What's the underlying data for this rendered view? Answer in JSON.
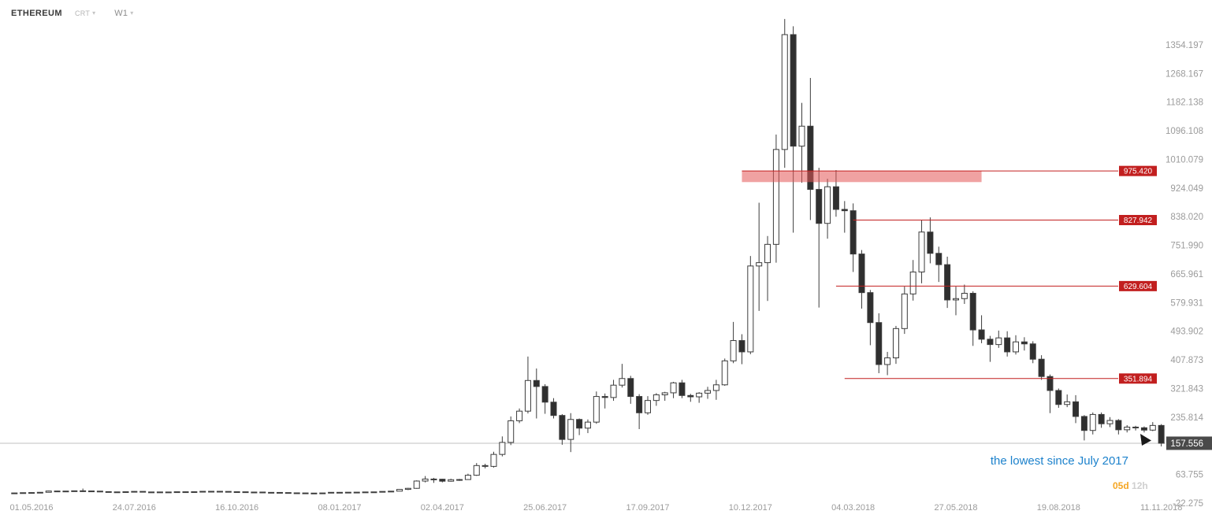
{
  "header": {
    "symbol": "ETHEREUM",
    "chart_type": "CRT",
    "timeframe": "W1"
  },
  "annotation": {
    "text": "the lowest since July 2017"
  },
  "countdown": {
    "days": "05d",
    "hours": "12h"
  },
  "current_price": {
    "label": "157.556",
    "value": 157.556
  },
  "colors": {
    "up_candle": "#ffffff",
    "down_candle": "#2f2f2f",
    "candle_outline": "#3c3c3c",
    "level_red": "#c21f1f",
    "zone_fill": "#e35555",
    "current_price_line": "#c0c0c0",
    "current_price_tag_bg": "#4a4a4a",
    "axis_text": "#9b9b9b",
    "annotation_blue": "#1d82cc",
    "countdown_orange": "#f5a623"
  },
  "levels": [
    {
      "label": "975.420",
      "price": 975.42,
      "type": "zone",
      "zone_bottom": 942.0,
      "start_index": 85,
      "zone_end_index": 113
    },
    {
      "label": "827.942",
      "price": 827.942,
      "type": "line",
      "start_index": 98
    },
    {
      "label": "629.604",
      "price": 629.604,
      "type": "line",
      "start_index": 96
    },
    {
      "label": "351.894",
      "price": 351.894,
      "type": "line",
      "start_index": 97
    }
  ],
  "price_axis": {
    "labels": [
      "1354.197",
      "1268.167",
      "1182.138",
      "1096.108",
      "1010.079",
      "924.049",
      "838.020",
      "751.990",
      "665.961",
      "579.931",
      "493.902",
      "407.873",
      "321.843",
      "235.814",
      "63.755",
      "-22.275"
    ]
  },
  "time_axis": {
    "ticks": [
      {
        "label": "01.05.2016",
        "index": 2
      },
      {
        "label": "24.07.2016",
        "index": 14
      },
      {
        "label": "16.10.2016",
        "index": 26
      },
      {
        "label": "08.01.2017",
        "index": 38
      },
      {
        "label": "02.04.2017",
        "index": 50
      },
      {
        "label": "25.06.2017",
        "index": 62
      },
      {
        "label": "17.09.2017",
        "index": 74
      },
      {
        "label": "10.12.2017",
        "index": 86
      },
      {
        "label": "04.03.2018",
        "index": 98
      },
      {
        "label": "27.05.2018",
        "index": 110
      },
      {
        "label": "19.08.2018",
        "index": 122
      },
      {
        "label": "11.11.2018",
        "index": 134
      }
    ]
  },
  "chart_data": {
    "type": "candlestick",
    "symbol": "ETHEREUM",
    "timeframe": "W1",
    "ylim": [
      -22.275,
      1440
    ],
    "y_tick_step": 86.03,
    "x_range": [
      "2016-04-17",
      "2018-11-11"
    ],
    "grid": false,
    "legend": false,
    "candles": [
      [
        "2016-04-17",
        7.9,
        8.6,
        7.3,
        8.2
      ],
      [
        "2016-04-24",
        8.2,
        9.3,
        7.9,
        9.0
      ],
      [
        "2016-05-01",
        9.0,
        10.1,
        8.7,
        9.4
      ],
      [
        "2016-05-08",
        9.4,
        10.6,
        9.1,
        10.2
      ],
      [
        "2016-05-15",
        10.2,
        15.0,
        10.0,
        14.0
      ],
      [
        "2016-05-22",
        14.0,
        14.6,
        11.9,
        12.4
      ],
      [
        "2016-05-29",
        12.4,
        14.3,
        12.0,
        13.9
      ],
      [
        "2016-06-05",
        13.9,
        15.1,
        13.3,
        14.7
      ],
      [
        "2016-06-12",
        14.7,
        21.4,
        10.9,
        14.2
      ],
      [
        "2016-06-19",
        14.2,
        14.9,
        12.5,
        13.7
      ],
      [
        "2016-06-26",
        13.7,
        14.2,
        11.8,
        12.2
      ],
      [
        "2016-07-03",
        12.2,
        12.5,
        10.9,
        11.4
      ],
      [
        "2016-07-10",
        11.4,
        12.0,
        10.1,
        10.8
      ],
      [
        "2016-07-17",
        10.8,
        12.2,
        10.2,
        11.9
      ],
      [
        "2016-07-24",
        11.9,
        13.5,
        11.3,
        12.9
      ],
      [
        "2016-07-31",
        12.9,
        13.0,
        10.7,
        10.9
      ],
      [
        "2016-08-07",
        10.9,
        11.6,
        10.5,
        11.2
      ],
      [
        "2016-08-14",
        11.2,
        11.8,
        10.6,
        11.1
      ],
      [
        "2016-08-21",
        11.1,
        11.4,
        10.7,
        11.0
      ],
      [
        "2016-08-28",
        11.0,
        12.1,
        10.8,
        11.8
      ],
      [
        "2016-09-04",
        11.8,
        12.4,
        11.2,
        11.6
      ],
      [
        "2016-09-11",
        11.6,
        12.1,
        11.2,
        11.9
      ],
      [
        "2016-09-18",
        11.9,
        13.3,
        11.7,
        13.1
      ],
      [
        "2016-09-25",
        13.1,
        13.4,
        12.7,
        13.2
      ],
      [
        "2016-10-02",
        13.2,
        13.3,
        12.6,
        12.8
      ],
      [
        "2016-10-09",
        12.8,
        12.9,
        11.5,
        11.9
      ],
      [
        "2016-10-16",
        11.9,
        12.2,
        11.3,
        11.7
      ],
      [
        "2016-10-23",
        11.7,
        11.8,
        10.1,
        10.4
      ],
      [
        "2016-10-30",
        10.4,
        11.1,
        10.0,
        10.9
      ],
      [
        "2016-11-06",
        10.9,
        11.0,
        9.6,
        10.0
      ],
      [
        "2016-11-13",
        10.0,
        10.3,
        9.4,
        9.8
      ],
      [
        "2016-11-20",
        9.8,
        10.0,
        9.1,
        9.3
      ],
      [
        "2016-11-27",
        9.3,
        9.5,
        8.2,
        8.5
      ],
      [
        "2016-12-04",
        8.5,
        8.7,
        7.4,
        8.2
      ],
      [
        "2016-12-11",
        8.2,
        8.4,
        7.6,
        7.8
      ],
      [
        "2016-12-18",
        7.8,
        8.0,
        7.0,
        7.3
      ],
      [
        "2016-12-25",
        7.3,
        8.4,
        7.1,
        8.2
      ],
      [
        "2017-01-01",
        8.2,
        10.4,
        7.9,
        10.1
      ],
      [
        "2017-01-08",
        10.1,
        10.9,
        9.4,
        9.7
      ],
      [
        "2017-01-15",
        9.7,
        10.6,
        9.3,
        10.4
      ],
      [
        "2017-01-22",
        10.4,
        10.8,
        10.0,
        10.6
      ],
      [
        "2017-01-29",
        10.6,
        11.4,
        10.3,
        11.2
      ],
      [
        "2017-02-05",
        11.2,
        11.6,
        10.7,
        11.4
      ],
      [
        "2017-02-12",
        11.4,
        13.0,
        11.2,
        12.8
      ],
      [
        "2017-02-19",
        12.8,
        13.9,
        12.4,
        13.6
      ],
      [
        "2017-02-26",
        13.6,
        19.4,
        13.4,
        18.9
      ],
      [
        "2017-03-05",
        18.9,
        23.5,
        16.9,
        22.1
      ],
      [
        "2017-03-12",
        22.1,
        46.0,
        20.9,
        44.0
      ],
      [
        "2017-03-19",
        44.0,
        59.0,
        40.0,
        50.0
      ],
      [
        "2017-03-26",
        50.0,
        53.5,
        38.5,
        49.5
      ],
      [
        "2017-04-02",
        49.5,
        50.5,
        40.0,
        43.5
      ],
      [
        "2017-04-09",
        43.5,
        51.0,
        42.0,
        48.0
      ],
      [
        "2017-04-16",
        48.0,
        50.5,
        44.5,
        48.5
      ],
      [
        "2017-04-23",
        48.5,
        66.0,
        47.5,
        61.5
      ],
      [
        "2017-04-30",
        61.5,
        98.0,
        59.5,
        90.5
      ],
      [
        "2017-05-07",
        90.5,
        96.0,
        82.0,
        88.0
      ],
      [
        "2017-05-14",
        88.0,
        132.0,
        84.5,
        124.0
      ],
      [
        "2017-05-21",
        124.0,
        178.0,
        118.0,
        160.0
      ],
      [
        "2017-05-28",
        160.0,
        238.0,
        152.0,
        225.0
      ],
      [
        "2017-06-04",
        225.0,
        262.0,
        218.0,
        254.0
      ],
      [
        "2017-06-11",
        254.0,
        418.0,
        247.0,
        346.0
      ],
      [
        "2017-06-18",
        346.0,
        382.0,
        232.0,
        328.0
      ],
      [
        "2017-06-25",
        328.0,
        335.0,
        246.0,
        281.0
      ],
      [
        "2017-07-02",
        281.0,
        293.0,
        232.0,
        241.0
      ],
      [
        "2017-07-09",
        241.0,
        245.0,
        153.0,
        169.0
      ],
      [
        "2017-07-16",
        169.0,
        248.0,
        131.0,
        229.0
      ],
      [
        "2017-07-23",
        229.0,
        232.0,
        182.0,
        203.0
      ],
      [
        "2017-07-30",
        203.0,
        229.0,
        188.0,
        221.0
      ],
      [
        "2017-08-06",
        221.0,
        313.0,
        216.0,
        298.0
      ],
      [
        "2017-08-13",
        298.0,
        307.0,
        262.0,
        295.0
      ],
      [
        "2017-08-20",
        295.0,
        348.0,
        285.0,
        332.0
      ],
      [
        "2017-08-27",
        332.0,
        396.0,
        325.0,
        352.0
      ],
      [
        "2017-09-03",
        352.0,
        360.0,
        276.0,
        298.0
      ],
      [
        "2017-09-10",
        298.0,
        305.0,
        200.0,
        249.0
      ],
      [
        "2017-09-17",
        249.0,
        299.0,
        243.0,
        286.0
      ],
      [
        "2017-09-24",
        286.0,
        308.0,
        270.0,
        303.0
      ],
      [
        "2017-10-01",
        303.0,
        312.0,
        285.0,
        309.0
      ],
      [
        "2017-10-08",
        309.0,
        342.0,
        293.0,
        339.0
      ],
      [
        "2017-10-15",
        339.0,
        348.0,
        293.0,
        301.0
      ],
      [
        "2017-10-22",
        301.0,
        306.0,
        282.0,
        297.0
      ],
      [
        "2017-10-29",
        297.0,
        311.0,
        279.0,
        308.0
      ],
      [
        "2017-11-05",
        308.0,
        327.0,
        291.0,
        316.0
      ],
      [
        "2017-11-12",
        316.0,
        348.0,
        288.0,
        333.0
      ],
      [
        "2017-11-19",
        333.0,
        412.0,
        330.0,
        405.0
      ],
      [
        "2017-11-26",
        405.0,
        522.0,
        398.0,
        466.0
      ],
      [
        "2017-12-03",
        466.0,
        485.0,
        395.0,
        432.0
      ],
      [
        "2017-12-10",
        432.0,
        720.0,
        425.0,
        690.0
      ],
      [
        "2017-12-17",
        690.0,
        880.0,
        555.0,
        700.0
      ],
      [
        "2017-12-24",
        700.0,
        780.0,
        585.0,
        755.0
      ],
      [
        "2017-12-31",
        755.0,
        1085.0,
        700.0,
        1040.0
      ],
      [
        "2018-01-07",
        1040.0,
        1432.0,
        985.0,
        1385.0
      ],
      [
        "2018-01-14",
        1385.0,
        1410.0,
        790.0,
        1050.0
      ],
      [
        "2018-01-21",
        1050.0,
        1180.0,
        940.0,
        1110.0
      ],
      [
        "2018-01-28",
        1110.0,
        1255.0,
        828.0,
        920.0
      ],
      [
        "2018-02-04",
        920.0,
        985.0,
        565.0,
        818.0
      ],
      [
        "2018-02-11",
        818.0,
        952.0,
        772.0,
        928.0
      ],
      [
        "2018-02-18",
        928.0,
        978.0,
        838.0,
        860.0
      ],
      [
        "2018-02-25",
        860.0,
        885.0,
        790.0,
        856.0
      ],
      [
        "2018-03-04",
        856.0,
        878.0,
        672.0,
        726.0
      ],
      [
        "2018-03-11",
        726.0,
        738.0,
        562.0,
        610.0
      ],
      [
        "2018-03-18",
        610.0,
        618.0,
        452.0,
        520.0
      ],
      [
        "2018-03-25",
        520.0,
        548.0,
        368.0,
        394.0
      ],
      [
        "2018-04-01",
        394.0,
        432.0,
        362.0,
        414.0
      ],
      [
        "2018-04-08",
        414.0,
        510.0,
        396.0,
        502.0
      ],
      [
        "2018-04-15",
        502.0,
        628.0,
        486.0,
        606.0
      ],
      [
        "2018-04-22",
        606.0,
        708.0,
        586.0,
        672.0
      ],
      [
        "2018-04-29",
        672.0,
        828.0,
        638.0,
        792.0
      ],
      [
        "2018-05-06",
        792.0,
        836.0,
        698.0,
        728.0
      ],
      [
        "2018-05-13",
        728.0,
        748.0,
        642.0,
        694.0
      ],
      [
        "2018-05-20",
        694.0,
        718.0,
        564.0,
        588.0
      ],
      [
        "2018-05-27",
        588.0,
        628.0,
        542.0,
        592.0
      ],
      [
        "2018-06-03",
        592.0,
        634.0,
        576.0,
        608.0
      ],
      [
        "2018-06-10",
        608.0,
        614.0,
        450.0,
        498.0
      ],
      [
        "2018-06-17",
        498.0,
        542.0,
        458.0,
        470.0
      ],
      [
        "2018-06-24",
        470.0,
        480.0,
        402.0,
        454.0
      ],
      [
        "2018-07-01",
        454.0,
        496.0,
        444.0,
        474.0
      ],
      [
        "2018-07-08",
        474.0,
        494.0,
        418.0,
        432.0
      ],
      [
        "2018-07-15",
        432.0,
        482.0,
        424.0,
        462.0
      ],
      [
        "2018-07-22",
        462.0,
        476.0,
        436.0,
        456.0
      ],
      [
        "2018-07-29",
        456.0,
        464.0,
        398.0,
        410.0
      ],
      [
        "2018-08-05",
        410.0,
        422.0,
        348.0,
        358.0
      ],
      [
        "2018-08-12",
        358.0,
        364.0,
        248.0,
        316.0
      ],
      [
        "2018-08-19",
        316.0,
        322.0,
        264.0,
        274.0
      ],
      [
        "2018-08-26",
        274.0,
        304.0,
        266.0,
        282.0
      ],
      [
        "2018-09-02",
        282.0,
        302.0,
        218.0,
        238.0
      ],
      [
        "2018-09-09",
        238.0,
        242.0,
        166.0,
        196.0
      ],
      [
        "2018-09-16",
        196.0,
        250.0,
        184.0,
        244.0
      ],
      [
        "2018-09-23",
        244.0,
        250.0,
        204.0,
        216.0
      ],
      [
        "2018-09-30",
        216.0,
        236.0,
        206.0,
        226.0
      ],
      [
        "2018-10-07",
        226.0,
        230.0,
        184.0,
        198.0
      ],
      [
        "2018-10-14",
        198.0,
        212.0,
        190.0,
        206.0
      ],
      [
        "2018-10-21",
        206.0,
        210.0,
        196.0,
        204.0
      ],
      [
        "2018-10-28",
        204.0,
        208.0,
        190.0,
        197.0
      ],
      [
        "2018-11-04",
        197.0,
        221.0,
        194.0,
        211.0
      ],
      [
        "2018-11-11",
        211.0,
        215.0,
        148.0,
        157.556
      ]
    ]
  }
}
